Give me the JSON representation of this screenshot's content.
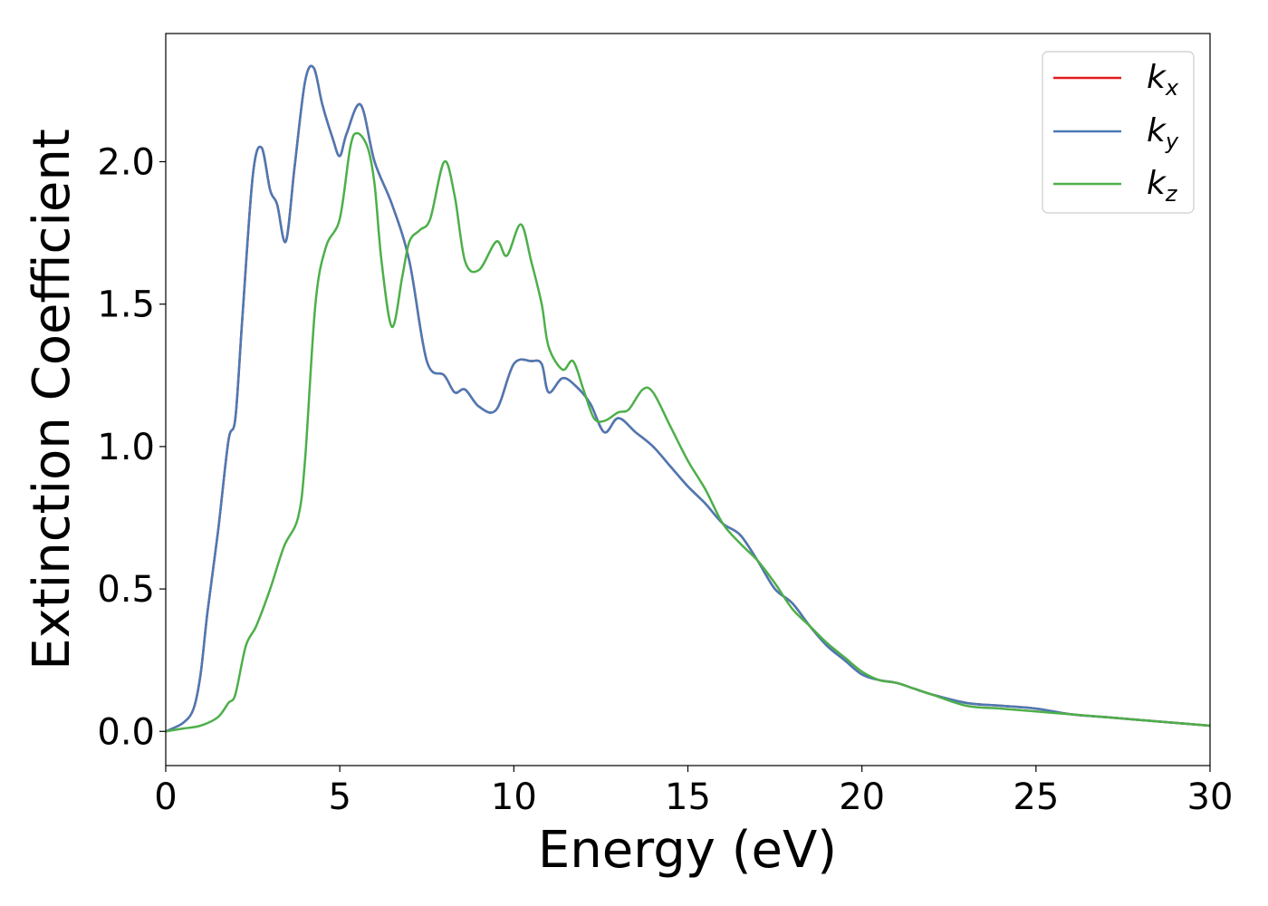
{
  "chart_data": {
    "type": "line",
    "xlabel": "Energy (eV)",
    "ylabel": "Extinction Coefficient",
    "xlim": [
      0,
      30
    ],
    "ylim": [
      -0.12,
      2.45
    ],
    "xticks": [
      0,
      5,
      10,
      15,
      20,
      25,
      30
    ],
    "xtick_labels": [
      "0",
      "5",
      "10",
      "15",
      "20",
      "25",
      "30"
    ],
    "yticks": [
      0.0,
      0.5,
      1.0,
      1.5,
      2.0
    ],
    "ytick_labels": [
      "0.0",
      "0.5",
      "1.0",
      "1.5",
      "2.0"
    ],
    "grid": false,
    "legend_position": "top-right",
    "series": [
      {
        "name": "k_x",
        "legend_main": "k",
        "legend_sub": "x",
        "color": "#e41a1c",
        "x": [
          0,
          0.5,
          0.8,
          1.0,
          1.2,
          1.5,
          1.8,
          2.0,
          2.2,
          2.5,
          2.75,
          3.0,
          3.2,
          3.45,
          3.7,
          4.0,
          4.25,
          4.5,
          4.8,
          5.0,
          5.2,
          5.6,
          6.0,
          6.5,
          7.0,
          7.5,
          8.0,
          8.3,
          8.6,
          9.0,
          9.5,
          10.0,
          10.5,
          10.8,
          11.0,
          11.4,
          11.8,
          12.2,
          12.6,
          13.0,
          13.5,
          14.0,
          14.5,
          15.0,
          15.5,
          16.0,
          16.5,
          17.0,
          17.5,
          18.0,
          18.5,
          19.0,
          19.5,
          20.0,
          20.5,
          21.0,
          21.5,
          22.0,
          23.0,
          24.0,
          25.0,
          26.0,
          27.0,
          28.0,
          29.0,
          30.0
        ],
        "y": [
          0.0,
          0.03,
          0.08,
          0.2,
          0.42,
          0.7,
          1.02,
          1.1,
          1.45,
          1.95,
          2.05,
          1.9,
          1.85,
          1.72,
          1.98,
          2.28,
          2.33,
          2.2,
          2.08,
          2.02,
          2.1,
          2.2,
          2.0,
          1.85,
          1.65,
          1.3,
          1.25,
          1.19,
          1.2,
          1.14,
          1.13,
          1.29,
          1.3,
          1.29,
          1.19,
          1.24,
          1.21,
          1.15,
          1.05,
          1.1,
          1.05,
          1.0,
          0.93,
          0.86,
          0.8,
          0.73,
          0.69,
          0.6,
          0.5,
          0.45,
          0.37,
          0.3,
          0.25,
          0.2,
          0.18,
          0.17,
          0.15,
          0.13,
          0.1,
          0.09,
          0.08,
          0.06,
          0.05,
          0.04,
          0.03,
          0.02
        ]
      },
      {
        "name": "k_y",
        "legend_main": "k",
        "legend_sub": "y",
        "color": "#4a7ab5",
        "x": [
          0,
          0.5,
          0.8,
          1.0,
          1.2,
          1.5,
          1.8,
          2.0,
          2.2,
          2.5,
          2.75,
          3.0,
          3.2,
          3.45,
          3.7,
          4.0,
          4.25,
          4.5,
          4.8,
          5.0,
          5.2,
          5.6,
          6.0,
          6.5,
          7.0,
          7.5,
          8.0,
          8.3,
          8.6,
          9.0,
          9.5,
          10.0,
          10.5,
          10.8,
          11.0,
          11.4,
          11.8,
          12.2,
          12.6,
          13.0,
          13.5,
          14.0,
          14.5,
          15.0,
          15.5,
          16.0,
          16.5,
          17.0,
          17.5,
          18.0,
          18.5,
          19.0,
          19.5,
          20.0,
          20.5,
          21.0,
          21.5,
          22.0,
          23.0,
          24.0,
          25.0,
          26.0,
          27.0,
          28.0,
          29.0,
          30.0
        ],
        "y": [
          0.0,
          0.03,
          0.08,
          0.2,
          0.42,
          0.7,
          1.02,
          1.1,
          1.45,
          1.95,
          2.05,
          1.9,
          1.85,
          1.72,
          1.98,
          2.28,
          2.33,
          2.2,
          2.08,
          2.02,
          2.1,
          2.2,
          2.0,
          1.85,
          1.65,
          1.3,
          1.25,
          1.19,
          1.2,
          1.14,
          1.13,
          1.29,
          1.3,
          1.29,
          1.19,
          1.24,
          1.21,
          1.15,
          1.05,
          1.1,
          1.05,
          1.0,
          0.93,
          0.86,
          0.8,
          0.73,
          0.69,
          0.6,
          0.5,
          0.45,
          0.37,
          0.3,
          0.25,
          0.2,
          0.18,
          0.17,
          0.15,
          0.13,
          0.1,
          0.09,
          0.08,
          0.06,
          0.05,
          0.04,
          0.03,
          0.02
        ]
      },
      {
        "name": "k_z",
        "legend_main": "k",
        "legend_sub": "z",
        "color": "#4daf4a",
        "x": [
          0,
          0.5,
          1.0,
          1.5,
          1.8,
          2.0,
          2.3,
          2.6,
          3.0,
          3.4,
          3.8,
          4.0,
          4.3,
          4.6,
          5.0,
          5.3,
          5.5,
          5.8,
          6.0,
          6.2,
          6.5,
          6.8,
          7.0,
          7.3,
          7.6,
          8.0,
          8.3,
          8.6,
          9.0,
          9.5,
          9.8,
          10.2,
          10.5,
          10.8,
          11.0,
          11.4,
          11.7,
          12.0,
          12.3,
          12.6,
          13.0,
          13.3,
          13.7,
          14.0,
          14.5,
          15.0,
          15.5,
          16.0,
          16.5,
          17.0,
          17.5,
          18.0,
          18.5,
          19.0,
          19.5,
          20.0,
          20.5,
          21.0,
          21.5,
          22.0,
          23.0,
          24.0,
          25.0,
          26.0,
          27.0,
          28.0,
          29.0,
          30.0
        ],
        "y": [
          0.0,
          0.01,
          0.02,
          0.05,
          0.1,
          0.13,
          0.3,
          0.37,
          0.5,
          0.65,
          0.75,
          0.95,
          1.5,
          1.7,
          1.8,
          2.05,
          2.1,
          2.05,
          1.92,
          1.65,
          1.42,
          1.6,
          1.72,
          1.76,
          1.8,
          2.0,
          1.88,
          1.65,
          1.62,
          1.72,
          1.67,
          1.78,
          1.65,
          1.5,
          1.35,
          1.27,
          1.3,
          1.2,
          1.1,
          1.09,
          1.12,
          1.13,
          1.2,
          1.19,
          1.07,
          0.95,
          0.85,
          0.73,
          0.66,
          0.6,
          0.52,
          0.43,
          0.37,
          0.31,
          0.26,
          0.21,
          0.18,
          0.17,
          0.15,
          0.13,
          0.09,
          0.08,
          0.07,
          0.06,
          0.05,
          0.04,
          0.03,
          0.02
        ]
      }
    ]
  }
}
